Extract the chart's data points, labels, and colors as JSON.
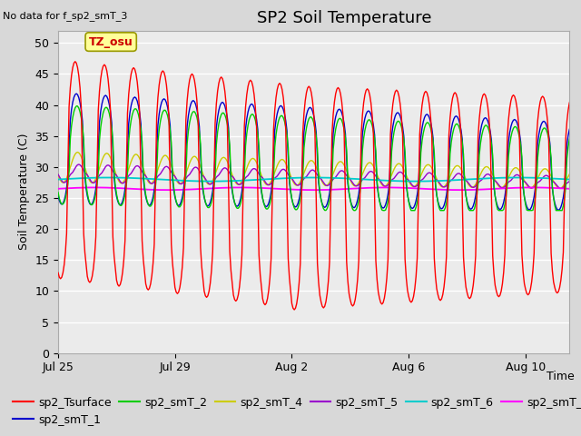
{
  "title": "SP2 Soil Temperature",
  "xlabel": "Time",
  "ylabel": "Soil Temperature (C)",
  "note": "No data for f_sp2_smT_3",
  "annotation": "TZ_osu",
  "ylim": [
    0,
    52
  ],
  "yticks": [
    0,
    5,
    10,
    15,
    20,
    25,
    30,
    35,
    40,
    45,
    50
  ],
  "xtick_labels": [
    "Jul 25",
    "Jul 29",
    "Aug 2",
    "Aug 6",
    "Aug 10"
  ],
  "xtick_positions": [
    0,
    4,
    8,
    12,
    16
  ],
  "series_colors": {
    "sp2_Tsurface": "#ff0000",
    "sp2_smT_1": "#0000cc",
    "sp2_smT_2": "#00cc00",
    "sp2_smT_4": "#cccc00",
    "sp2_smT_5": "#9900cc",
    "sp2_smT_6": "#00cccc",
    "sp2_smT_7": "#ff00ff"
  },
  "bg_color": "#d8d8d8",
  "plot_bg_color": "#ebebeb",
  "title_fontsize": 13,
  "axis_label_fontsize": 9,
  "tick_fontsize": 9,
  "legend_fontsize": 9,
  "note_fontsize": 8
}
